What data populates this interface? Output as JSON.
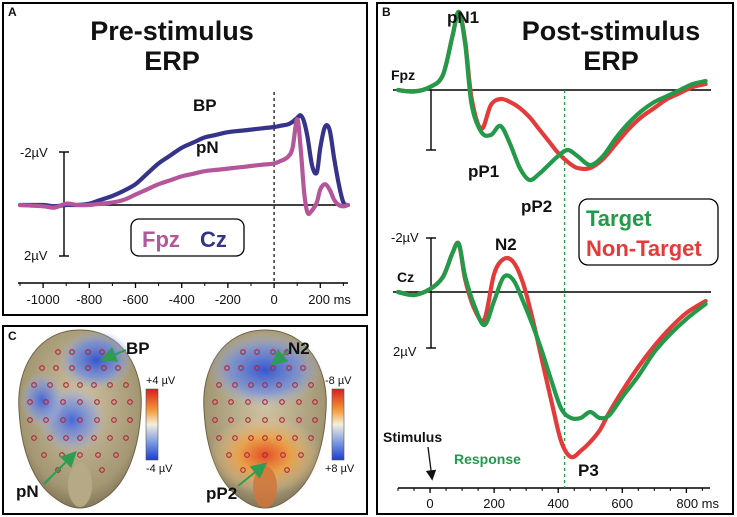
{
  "chart_data": [
    {
      "id": "A",
      "type": "line",
      "panel_label": "A",
      "title_line1": "Pre-stimulus",
      "title_line2": "ERP",
      "xlabel": "ms",
      "x_ticks": [
        -1000,
        -800,
        -600,
        -400,
        -200,
        0,
        200
      ],
      "x_tick_labels": [
        "-1000",
        "-800",
        "-600",
        "-400",
        "-200",
        "0",
        "200 ms"
      ],
      "xlim": [
        -1100,
        320
      ],
      "y_unit_note": "negative up",
      "y_tick_labels": [
        "-2µV",
        "2µV"
      ],
      "ylim": [
        -3.5,
        2.2
      ],
      "vertical_marker_x": 0,
      "component_labels": [
        "BP",
        "pN"
      ],
      "legend": [
        "Fpz",
        "Cz"
      ],
      "series": [
        {
          "name": "Cz",
          "color": "#35338a",
          "x": [
            -1100,
            -1000,
            -950,
            -900,
            -850,
            -800,
            -750,
            -700,
            -650,
            -600,
            -550,
            -500,
            -450,
            -400,
            -350,
            -300,
            -250,
            -200,
            -150,
            -100,
            -50,
            0,
            30,
            60,
            80,
            100,
            115,
            130,
            145,
            165,
            185,
            200,
            220,
            240,
            260,
            280,
            300,
            320
          ],
          "values": [
            0,
            0,
            0.05,
            0,
            0,
            -0.05,
            -0.2,
            -0.35,
            -0.55,
            -0.8,
            -1.2,
            -1.6,
            -1.9,
            -2.2,
            -2.4,
            -2.6,
            -2.7,
            -2.8,
            -2.85,
            -2.9,
            -2.95,
            -3.0,
            -3.05,
            -3.1,
            -3.2,
            -3.35,
            -3.45,
            -3.2,
            -2.6,
            -1.5,
            -1.25,
            -2.2,
            -3.0,
            -2.9,
            -1.8,
            -0.8,
            -0.1,
            0
          ]
        },
        {
          "name": "Fpz",
          "color": "#b5559a",
          "x": [
            -1100,
            -1000,
            -950,
            -900,
            -850,
            -800,
            -750,
            -700,
            -650,
            -600,
            -550,
            -500,
            -450,
            -400,
            -350,
            -300,
            -250,
            -200,
            -150,
            -100,
            -50,
            0,
            30,
            60,
            80,
            100,
            115,
            130,
            145,
            165,
            185,
            200,
            220,
            240,
            260,
            280,
            300,
            320
          ],
          "values": [
            0,
            0.05,
            0.1,
            -0.05,
            0,
            0,
            -0.05,
            -0.1,
            -0.2,
            -0.4,
            -0.6,
            -0.8,
            -0.95,
            -1.1,
            -1.2,
            -1.3,
            -1.35,
            -1.4,
            -1.45,
            -1.5,
            -1.55,
            -1.6,
            -1.7,
            -1.85,
            -2.2,
            -3.3,
            -2.2,
            -0.5,
            0.3,
            0.2,
            -0.1,
            -0.6,
            -0.8,
            -0.6,
            -0.2,
            0,
            0.05,
            0
          ]
        }
      ]
    },
    {
      "id": "B",
      "type": "line",
      "panel_label": "B",
      "title_line1": "Post-stimulus",
      "title_line2": "ERP",
      "xlabel": "ms",
      "x_ticks": [
        0,
        200,
        400,
        600,
        800
      ],
      "x_tick_labels": [
        "0",
        "200",
        "400",
        "600",
        "800 ms"
      ],
      "xlim": [
        -100,
        880
      ],
      "vertical_marker_x": 420,
      "y_tick_labels": [
        "-2µV",
        "2µV"
      ],
      "channels": [
        "Fpz",
        "Cz"
      ],
      "component_labels": [
        "pN1",
        "pP1",
        "pP2",
        "N2",
        "P3"
      ],
      "legend": [
        "Target",
        "Non-Target"
      ],
      "annotations": [
        "Stimulus",
        "Response"
      ],
      "series": [
        {
          "name": "Fpz Target",
          "color": "#229a49",
          "x": [
            -100,
            -50,
            0,
            40,
            70,
            90,
            110,
            130,
            160,
            190,
            220,
            250,
            280,
            310,
            340,
            370,
            400,
            430,
            460,
            500,
            540,
            580,
            620,
            660,
            700,
            740,
            780,
            820,
            860
          ],
          "values": [
            0,
            0.05,
            -0.1,
            -0.5,
            -1.8,
            -2.6,
            -1.5,
            0.5,
            1.4,
            1.5,
            1.2,
            1.8,
            2.6,
            3.0,
            2.8,
            2.5,
            2.2,
            2.0,
            2.2,
            2.5,
            2.2,
            1.6,
            1.1,
            0.7,
            0.4,
            0.2,
            0.0,
            -0.2,
            -0.3
          ]
        },
        {
          "name": "Fpz Non-Target",
          "color": "#e53a3a",
          "x": [
            -100,
            -50,
            0,
            40,
            70,
            90,
            110,
            130,
            160,
            190,
            220,
            250,
            280,
            310,
            340,
            370,
            400,
            430,
            460,
            500,
            540,
            580,
            620,
            660,
            700,
            740,
            780,
            820,
            860
          ],
          "values": [
            0,
            0.05,
            -0.1,
            -0.5,
            -1.8,
            -2.6,
            -1.6,
            0.3,
            1.3,
            0.5,
            0.3,
            0.4,
            0.6,
            0.9,
            1.3,
            1.7,
            2.1,
            2.4,
            2.6,
            2.6,
            2.3,
            1.8,
            1.3,
            0.9,
            0.6,
            0.3,
            0.1,
            -0.1,
            -0.2
          ]
        },
        {
          "name": "Cz Target",
          "color": "#229a49",
          "x": [
            -100,
            -50,
            0,
            40,
            70,
            90,
            110,
            140,
            170,
            200,
            230,
            260,
            290,
            320,
            350,
            380,
            410,
            440,
            470,
            500,
            530,
            560,
            600,
            650,
            700,
            750,
            800,
            860
          ],
          "values": [
            0,
            0.1,
            -0.1,
            -0.5,
            -1.3,
            -1.6,
            -0.5,
            0.5,
            1.1,
            0.3,
            -0.5,
            -0.4,
            0.3,
            1.1,
            2.0,
            3.0,
            3.9,
            4.2,
            4.2,
            4.0,
            4.2,
            4.1,
            3.5,
            2.8,
            2.0,
            1.4,
            0.9,
            0.4
          ]
        },
        {
          "name": "Cz Non-Target",
          "color": "#e53a3a",
          "x": [
            -100,
            -50,
            0,
            40,
            70,
            90,
            110,
            140,
            170,
            200,
            230,
            260,
            290,
            320,
            350,
            380,
            410,
            440,
            470,
            500,
            530,
            560,
            600,
            650,
            700,
            750,
            800,
            860
          ],
          "values": [
            0,
            0.1,
            -0.1,
            -0.5,
            -1.3,
            -1.6,
            -0.4,
            0.6,
            0.9,
            -0.6,
            -1.1,
            -1.0,
            -0.3,
            0.9,
            2.3,
            3.7,
            5.0,
            5.5,
            5.3,
            5.0,
            4.6,
            4.0,
            3.3,
            2.5,
            1.8,
            1.2,
            0.7,
            0.3
          ]
        }
      ]
    },
    {
      "id": "C",
      "type": "heatmap",
      "panel_label": "C",
      "maps": [
        {
          "label_top": "BP",
          "label_bottom": "pN",
          "scale_max": "+4 µV",
          "scale_min": "-4 µV"
        },
        {
          "label_top": "N2",
          "label_bottom": "pP2",
          "scale_max": "-8 µV",
          "scale_min": "+8 µV"
        }
      ]
    }
  ],
  "colors": {
    "cz_blue": "#35338a",
    "fpz_pink": "#b5559a",
    "target_green": "#229a49",
    "nontarget_red": "#e53a3a",
    "marker_green": "#229a49",
    "arrow_green": "#2e9c53"
  }
}
